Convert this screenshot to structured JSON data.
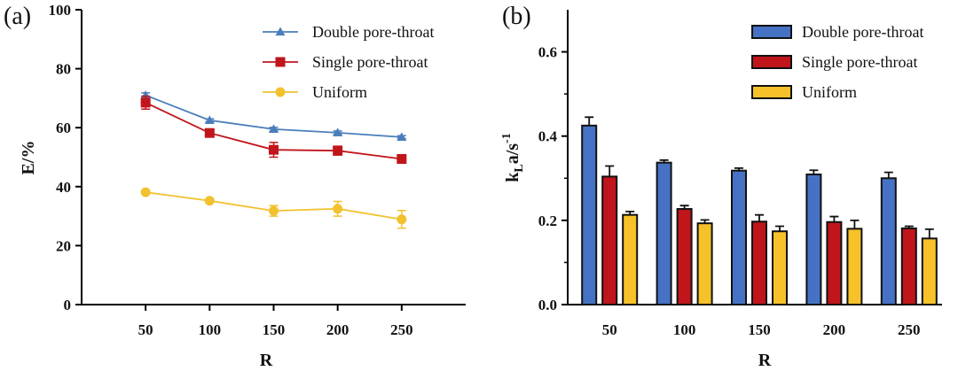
{
  "chart_data": [
    {
      "type": "line",
      "panel_label": "(a)",
      "x": [
        50,
        100,
        150,
        200,
        250
      ],
      "xticks": [
        "50",
        "100",
        "150",
        "200",
        "250"
      ],
      "xlabel": "R",
      "ylabel": "E/%",
      "ylim": [
        0,
        100
      ],
      "yticks": [
        "0",
        "20",
        "40",
        "60",
        "80",
        "100"
      ],
      "legend_position": "top-right",
      "series": [
        {
          "name": "Double pore-throat",
          "color": "#4a7ebb",
          "marker": "triangle",
          "values": [
            71.0,
            62.5,
            59.5,
            58.3,
            56.8
          ],
          "errors": [
            0.8,
            0.5,
            0.6,
            0.6,
            0.5
          ]
        },
        {
          "name": "Single pore-throat",
          "color": "#c0151b",
          "marker": "square",
          "values": [
            68.5,
            58.2,
            52.5,
            52.2,
            49.4
          ],
          "errors": [
            2.2,
            0.8,
            2.5,
            1.5,
            0.8
          ]
        },
        {
          "name": "Uniform",
          "color": "#f2c12e",
          "marker": "circle",
          "values": [
            38.1,
            35.2,
            31.8,
            32.5,
            28.9
          ],
          "errors": [
            0.5,
            0.5,
            1.8,
            2.5,
            3.0
          ]
        }
      ]
    },
    {
      "type": "bar",
      "panel_label": "(b)",
      "categories": [
        "50",
        "100",
        "150",
        "200",
        "250"
      ],
      "xlabel": "R",
      "ylabel_main": "k",
      "ylabel_sub": "L",
      "ylabel_rest": "a/s",
      "ylabel_sup": "-1",
      "ylim": [
        0,
        0.7
      ],
      "yticks": [
        "0.0",
        "0.2",
        "0.4",
        "0.6"
      ],
      "legend_position": "top-right",
      "series": [
        {
          "name": "Double pore-throat",
          "color": "#4572c4",
          "values": [
            0.425,
            0.337,
            0.318,
            0.309,
            0.3
          ],
          "errors": [
            0.02,
            0.006,
            0.006,
            0.01,
            0.014
          ]
        },
        {
          "name": "Single pore-throat",
          "color": "#c0151b",
          "values": [
            0.304,
            0.227,
            0.197,
            0.196,
            0.181
          ],
          "errors": [
            0.025,
            0.008,
            0.016,
            0.013,
            0.005
          ]
        },
        {
          "name": "Uniform",
          "color": "#f7c12a",
          "values": [
            0.213,
            0.193,
            0.174,
            0.18,
            0.157
          ],
          "errors": [
            0.008,
            0.008,
            0.012,
            0.02,
            0.022
          ]
        }
      ]
    }
  ]
}
